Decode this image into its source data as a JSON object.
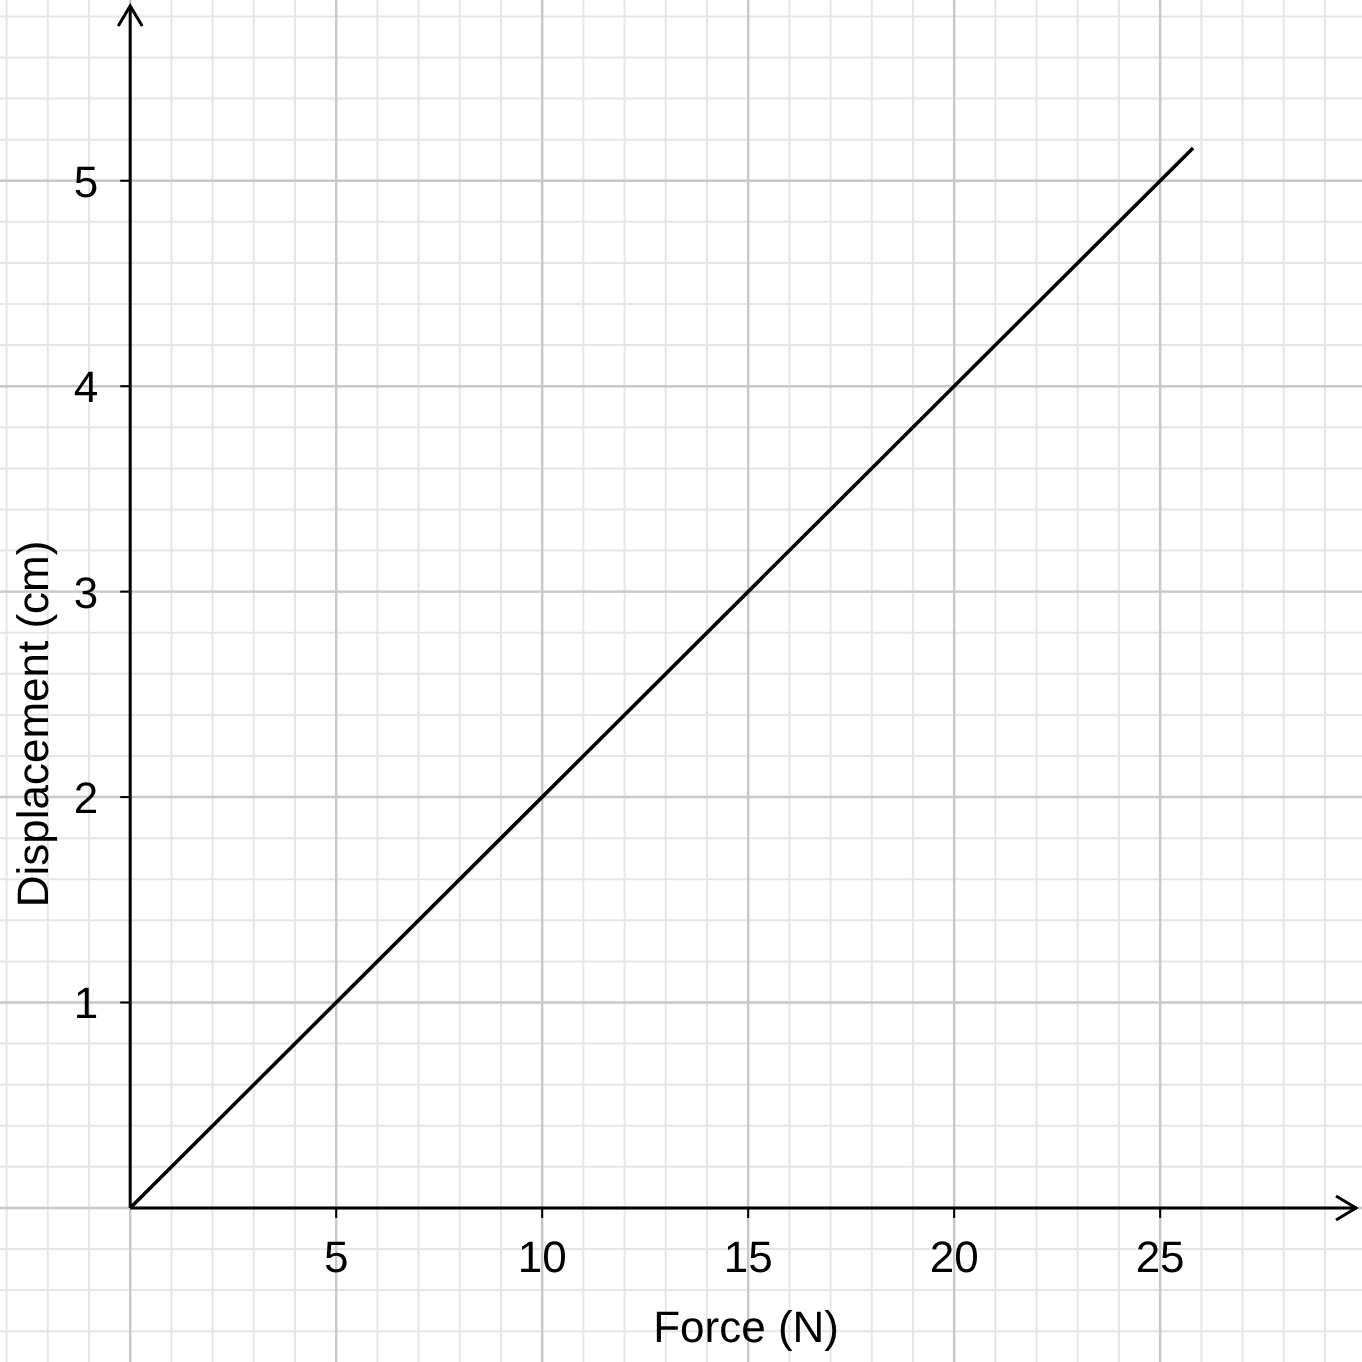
{
  "chart_data": {
    "type": "line",
    "xlabel": "Force (N)",
    "ylabel": "Displacement (cm)",
    "x": [
      0,
      25.8
    ],
    "series": [
      {
        "color": "#000000",
        "values": [
          0,
          5.16
        ]
      }
    ],
    "xlim": [
      -3.16,
      29.9
    ],
    "ylim": [
      -0.75,
      5.88
    ],
    "xticks": [
      5,
      10,
      15,
      20,
      25
    ],
    "yticks": [
      1,
      2,
      3,
      4,
      5
    ],
    "grid": true,
    "marker": "none",
    "line_style": "solid"
  }
}
